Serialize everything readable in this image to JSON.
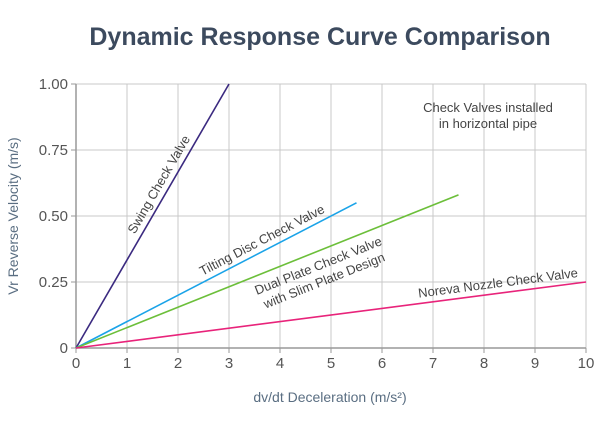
{
  "chart_data": {
    "type": "line",
    "title": "Dynamic Response Curve Comparison",
    "xlabel": "dv/dt Deceleration (m/s²)",
    "ylabel": "Vr Reverse Velocity (m/s)",
    "xlim": [
      0,
      10
    ],
    "ylim": [
      0,
      1
    ],
    "xticks": [
      "0",
      "1",
      "2",
      "3",
      "4",
      "5",
      "6",
      "7",
      "8",
      "9",
      "10"
    ],
    "yticks": [
      "0",
      "0.25",
      "0.50",
      "0.75",
      "1.00"
    ],
    "grid": true,
    "annotation": [
      "Check Valves installed",
      "in horizontal pipe"
    ],
    "series": [
      {
        "name": "Swing Check Valve",
        "color": "#3b2a80",
        "x": [
          0,
          3
        ],
        "y": [
          0,
          1.0
        ]
      },
      {
        "name": "Tilting Disc Check Valve",
        "color": "#1aa3e8",
        "x": [
          0,
          5.5
        ],
        "y": [
          0,
          0.55
        ]
      },
      {
        "name": "Dual Plate Check Valve|with Slim Plate Design",
        "color": "#6cbf3a",
        "x": [
          0,
          7.5
        ],
        "y": [
          0,
          0.58
        ]
      },
      {
        "name": "Noreva Nozzle Check Valve",
        "color": "#e8237a",
        "x": [
          0,
          10
        ],
        "y": [
          0,
          0.25
        ]
      }
    ]
  }
}
